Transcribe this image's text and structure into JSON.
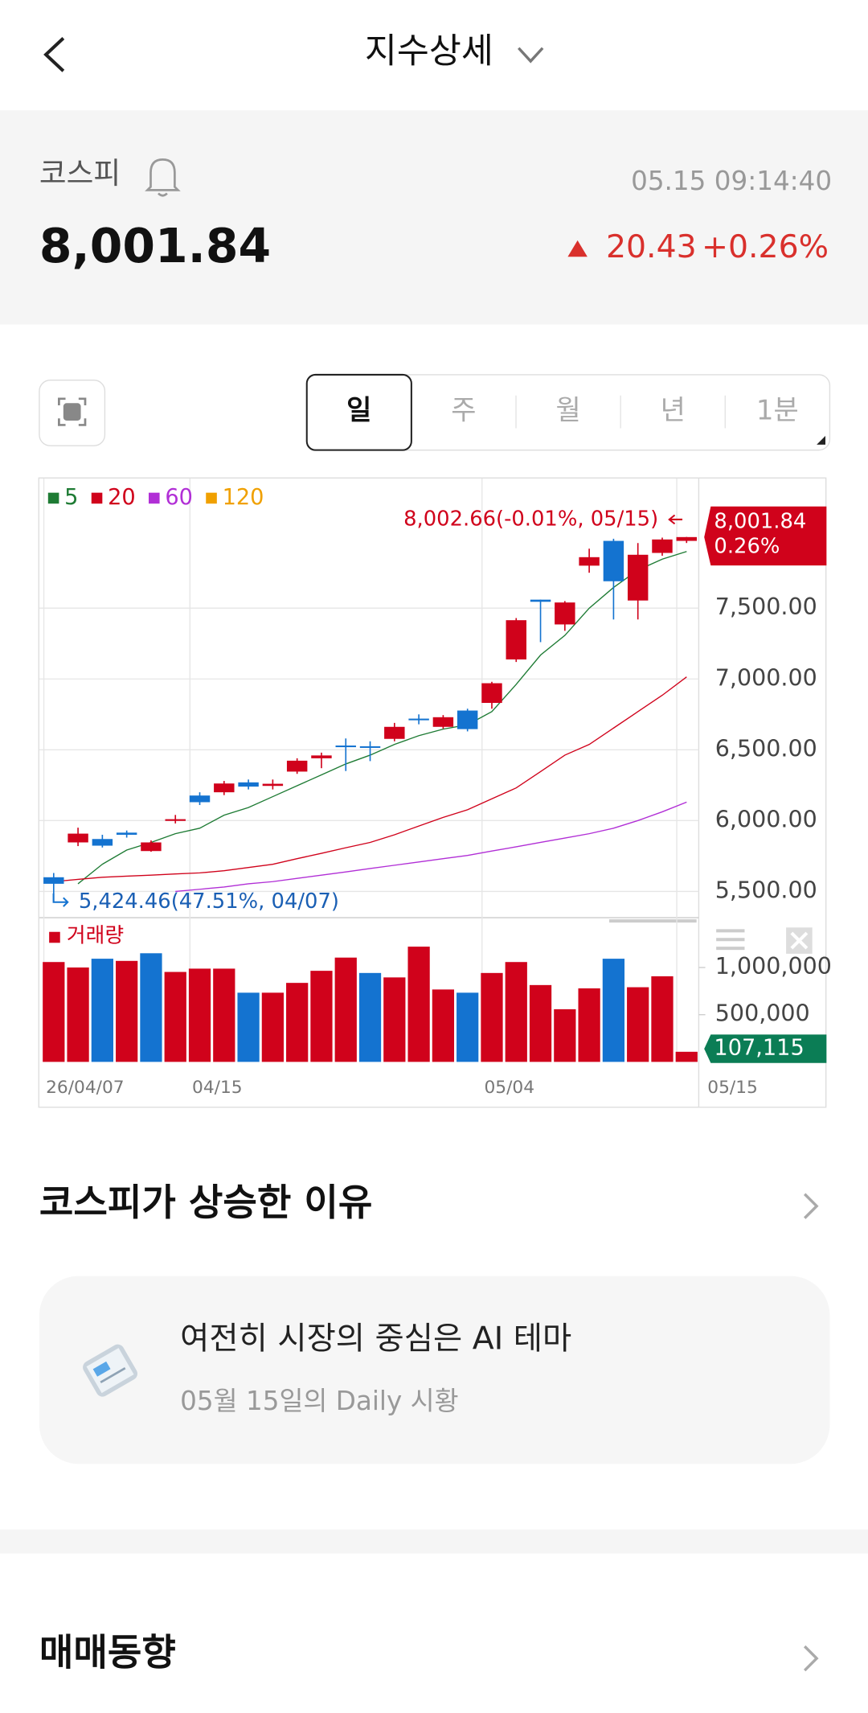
{
  "header": {
    "title": "지수상세"
  },
  "index": {
    "name": "코스피",
    "timestamp": "05.15 09:14:40",
    "price": "8,001.84",
    "change": "20.43",
    "change_pct": "+0.26%"
  },
  "tabs": {
    "items": [
      "일",
      "주",
      "월",
      "년",
      "1분"
    ],
    "selected": 0
  },
  "chart_data": [
    {
      "type": "candlestick",
      "categories": [
        "26/04/07",
        null,
        null,
        null,
        null,
        null,
        "04/15",
        null,
        null,
        null,
        null,
        null,
        null,
        null,
        null,
        null,
        null,
        null,
        "05/04",
        null,
        null,
        null,
        null,
        null,
        null,
        null,
        "05/15"
      ],
      "open": [
        5600,
        5846,
        5870,
        5915,
        5785,
        5998,
        6177,
        6200,
        6270,
        6245,
        6346,
        6440,
        6530,
        6525,
        6577,
        6720,
        6662,
        6777,
        6831,
        7138,
        7560,
        7385,
        7800,
        7975,
        7554,
        7890,
        7975
      ],
      "high": [
        5630,
        5950,
        5900,
        5930,
        5860,
        6040,
        6200,
        6280,
        6290,
        6290,
        6440,
        6480,
        6580,
        6560,
        6690,
        6750,
        6745,
        6790,
        6980,
        7430,
        7560,
        7550,
        7920,
        7990,
        7960,
        7998,
        8002.66
      ],
      "low": [
        5424.46,
        5820,
        5810,
        5880,
        5780,
        5980,
        6110,
        6180,
        6220,
        6220,
        6330,
        6370,
        6350,
        6420,
        6560,
        6680,
        6650,
        6630,
        6790,
        7120,
        7260,
        7340,
        7750,
        7420,
        7420,
        7870,
        7960
      ],
      "close": [
        5554,
        5908,
        5823,
        5900,
        5846,
        6010,
        6130,
        6262,
        6240,
        6260,
        6423,
        6460,
        6520,
        6515,
        6662,
        6710,
        6730,
        6646,
        6970,
        7415,
        7545,
        7540,
        7860,
        7690,
        7877,
        7985,
        8001.84
      ],
      "up_color": "#d0021b",
      "down_color": "#1473d0",
      "series": [
        {
          "name": "5",
          "color": "#1e7b34",
          "values": [
            null,
            5554,
            5692,
            5792,
            5846,
            5908,
            5946,
            6038,
            6092,
            6169,
            6246,
            6323,
            6400,
            6462,
            6538,
            6600,
            6646,
            6677,
            6769,
            6962,
            7169,
            7308,
            7500,
            7646,
            7769,
            7846,
            7900
          ]
        },
        {
          "name": "20",
          "color": "#d0021b",
          "values": [
            5569,
            5585,
            5600,
            5608,
            5615,
            5623,
            5631,
            5646,
            5669,
            5692,
            5731,
            5769,
            5808,
            5846,
            5900,
            5962,
            6023,
            6077,
            6154,
            6231,
            6346,
            6462,
            6538,
            6654,
            6769,
            6885,
            7015
          ]
        },
        {
          "name": "60",
          "color": "#b12fd6",
          "values": [
            null,
            null,
            null,
            null,
            null,
            5500,
            5515,
            5531,
            5554,
            5569,
            5592,
            5615,
            5638,
            5662,
            5685,
            5708,
            5731,
            5754,
            5785,
            5815,
            5846,
            5877,
            5908,
            5946,
            6000,
            6062,
            6131
          ]
        },
        {
          "name": "120",
          "color": "#f0a000",
          "values": [
            null,
            null,
            null,
            null,
            null,
            null,
            null,
            null,
            null,
            null,
            null,
            null,
            null,
            null,
            null,
            null,
            null,
            null,
            null,
            null,
            null,
            null,
            null,
            null,
            null,
            null,
            null
          ]
        }
      ],
      "ylim": [
        5330,
        8400
      ],
      "yticks": [
        {
          "value": 5500,
          "label": "5,500.00"
        },
        {
          "value": 6000,
          "label": "6,000.00"
        },
        {
          "value": 6500,
          "label": "6,500.00"
        },
        {
          "value": 7000,
          "label": "7,000.00"
        },
        {
          "value": 7500,
          "label": "7,500.00"
        }
      ],
      "grid": true,
      "max_annotation": {
        "value": 8002.66,
        "index": 26,
        "label": "8,002.66(-0.01%, 05/15)"
      },
      "min_annotation": {
        "value": 5424.46,
        "index": 0,
        "label": "5,424.46(47.51%, 04/07)"
      },
      "last_tag": {
        "value": 8001.84,
        "label": "8,001.84",
        "change": "0.26%",
        "color": "#d0021b"
      }
    },
    {
      "type": "bar",
      "title": "거래량",
      "values": [
        1058000,
        1000000,
        1093000,
        1070000,
        1151000,
        953000,
        988000,
        988000,
        733000,
        733000,
        837000,
        965000,
        1105000,
        942000,
        895000,
        1221000,
        767000,
        733000,
        942000,
        1058000,
        814000,
        558000,
        779000,
        1093000,
        791000,
        907000,
        107115
      ],
      "colors": [
        "#d0021b",
        "#d0021b",
        "#1473d0",
        "#d0021b",
        "#1473d0",
        "#d0021b",
        "#d0021b",
        "#d0021b",
        "#1473d0",
        "#d0021b",
        "#d0021b",
        "#d0021b",
        "#d0021b",
        "#1473d0",
        "#d0021b",
        "#d0021b",
        "#d0021b",
        "#1473d0",
        "#d0021b",
        "#d0021b",
        "#d0021b",
        "#d0021b",
        "#d0021b",
        "#1473d0",
        "#d0021b",
        "#d0021b",
        "#d0021b"
      ],
      "ylim": [
        0,
        1470000
      ],
      "yticks": [
        {
          "value": 500000,
          "label": "500,000"
        },
        {
          "value": 1000000,
          "label": "1,000,000"
        }
      ],
      "last_tag": {
        "value": 107115,
        "label": "107,115",
        "color": "#0b7d55"
      }
    }
  ],
  "reason_section": {
    "title": "코스피가 상승한 이유",
    "card_title": "여전히 시장의 중심은 AI 테마",
    "card_subtitle": "05월 15일의 Daily 시황"
  },
  "trading_section": {
    "title": "매매동향"
  }
}
